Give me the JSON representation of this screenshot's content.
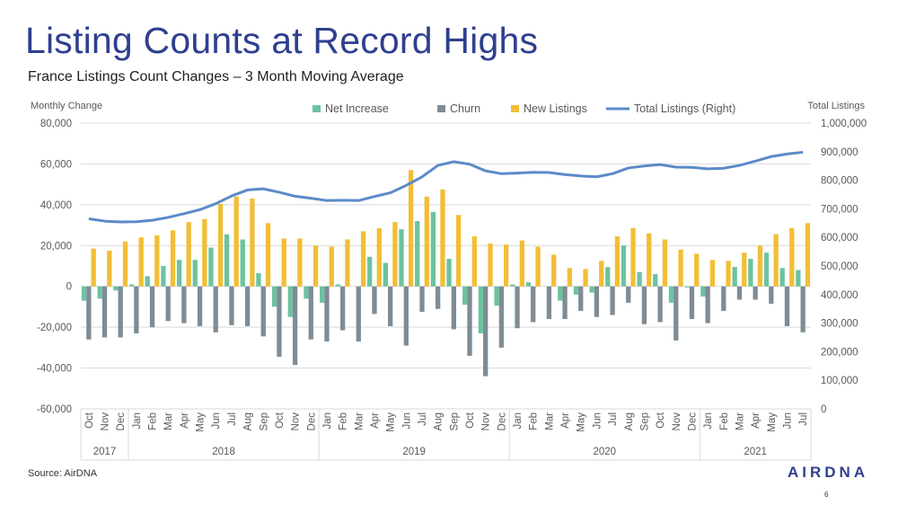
{
  "slide": {
    "title": "Listing Counts at Record Highs",
    "subtitle": "France Listings Count Changes – 3 Month Moving Average",
    "source": "Source: AirDNA",
    "logo": "AIRDNA",
    "page_number": "6"
  },
  "colors": {
    "net_increase": "#6cc3a0",
    "churn": "#7f8c95",
    "new_listings": "#f2be35",
    "total_listings": "#5b8ac9",
    "title": "#2f3f8f"
  },
  "chart_data": {
    "type": "bar+line",
    "left_axis": {
      "label": "Monthly Change",
      "min": -60000,
      "max": 80000,
      "ticks": [
        "-60,000",
        "-40,000",
        "-20,000",
        "0",
        "20,000",
        "40,000",
        "60,000",
        "80,000"
      ]
    },
    "right_axis": {
      "label": "Total Listings",
      "min": 0,
      "max": 1000000,
      "ticks": [
        "0",
        "100,000",
        "200,000",
        "300,000",
        "400,000",
        "500,000",
        "600,000",
        "700,000",
        "800,000",
        "900,000",
        "1,000,000"
      ]
    },
    "grid": true,
    "legend_position": "top",
    "months": [
      "Oct",
      "Nov",
      "Dec",
      "Jan",
      "Feb",
      "Mar",
      "Apr",
      "May",
      "Jun",
      "Jul",
      "Aug",
      "Sep",
      "Oct",
      "Nov",
      "Dec",
      "Jan",
      "Feb",
      "Mar",
      "Apr",
      "May",
      "Jun",
      "Jul",
      "Aug",
      "Sep",
      "Oct",
      "Nov",
      "Dec",
      "Jan",
      "Feb",
      "Mar",
      "Apr",
      "May",
      "Jun",
      "Jul",
      "Aug",
      "Sep",
      "Oct",
      "Nov",
      "Dec",
      "Jan",
      "Feb",
      "Mar",
      "Apr",
      "May",
      "Jun",
      "Jul"
    ],
    "years": [
      {
        "label": "2017",
        "start": 0,
        "end": 3
      },
      {
        "label": "2018",
        "start": 3,
        "end": 15
      },
      {
        "label": "2019",
        "start": 15,
        "end": 27
      },
      {
        "label": "2020",
        "start": 27,
        "end": 39
      },
      {
        "label": "2021",
        "start": 39,
        "end": 46
      }
    ],
    "series": [
      {
        "name": "Net Increase",
        "axis": "left",
        "kind": "bar",
        "values": [
          -7000,
          -6000,
          -2000,
          1000,
          5000,
          10000,
          13000,
          13000,
          19000,
          25500,
          23000,
          6500,
          -10000,
          -15000,
          -6000,
          -8000,
          1000,
          0,
          14500,
          11500,
          28000,
          32000,
          36500,
          13500,
          -9000,
          -23000,
          -9500,
          1000,
          2000,
          0,
          -7000,
          -4000,
          -3000,
          9500,
          20000,
          7000,
          6000,
          -8000,
          -500,
          -5000,
          0,
          9500,
          13500,
          16500,
          9000,
          8000
        ]
      },
      {
        "name": "Churn",
        "axis": "left",
        "kind": "bar",
        "values": [
          -26000,
          -25000,
          -25000,
          -23000,
          -20000,
          -17000,
          -18000,
          -19500,
          -22500,
          -19000,
          -19500,
          -24500,
          -34500,
          -38500,
          -26000,
          -27000,
          -21500,
          -27000,
          -13500,
          -19500,
          -29000,
          -12500,
          -11000,
          -21000,
          -34000,
          -44000,
          -30000,
          -20500,
          -17500,
          -16000,
          -16000,
          -12000,
          -15000,
          -14000,
          -8000,
          -18500,
          -17500,
          -26500,
          -16000,
          -18000,
          -12000,
          -6500,
          -6500,
          -8500,
          -19500,
          -22500
        ]
      },
      {
        "name": "New Listings",
        "axis": "left",
        "kind": "bar",
        "values": [
          18500,
          17500,
          22000,
          24000,
          25000,
          27500,
          31500,
          33000,
          40500,
          44000,
          43000,
          31000,
          23500,
          23500,
          20000,
          19500,
          23000,
          27000,
          28500,
          31500,
          57000,
          44000,
          47500,
          35000,
          24500,
          21000,
          20500,
          22500,
          19500,
          15500,
          9000,
          8500,
          12500,
          24500,
          28500,
          26000,
          23000,
          18000,
          16000,
          13000,
          12500,
          16500,
          20000,
          25500,
          28500,
          31000
        ]
      },
      {
        "name": "Total Listings (Right)",
        "axis": "right",
        "kind": "line",
        "values": [
          665000,
          657000,
          654000,
          655000,
          660000,
          670000,
          683000,
          697000,
          718000,
          745000,
          766000,
          770000,
          758000,
          744000,
          737000,
          729000,
          730000,
          729000,
          743000,
          756000,
          782000,
          812000,
          852000,
          865000,
          856000,
          833000,
          823000,
          825000,
          828000,
          827000,
          820000,
          815000,
          812000,
          823000,
          843000,
          850000,
          855000,
          846000,
          845000,
          840000,
          842000,
          852000,
          867000,
          883000,
          892000,
          898000
        ]
      }
    ]
  }
}
